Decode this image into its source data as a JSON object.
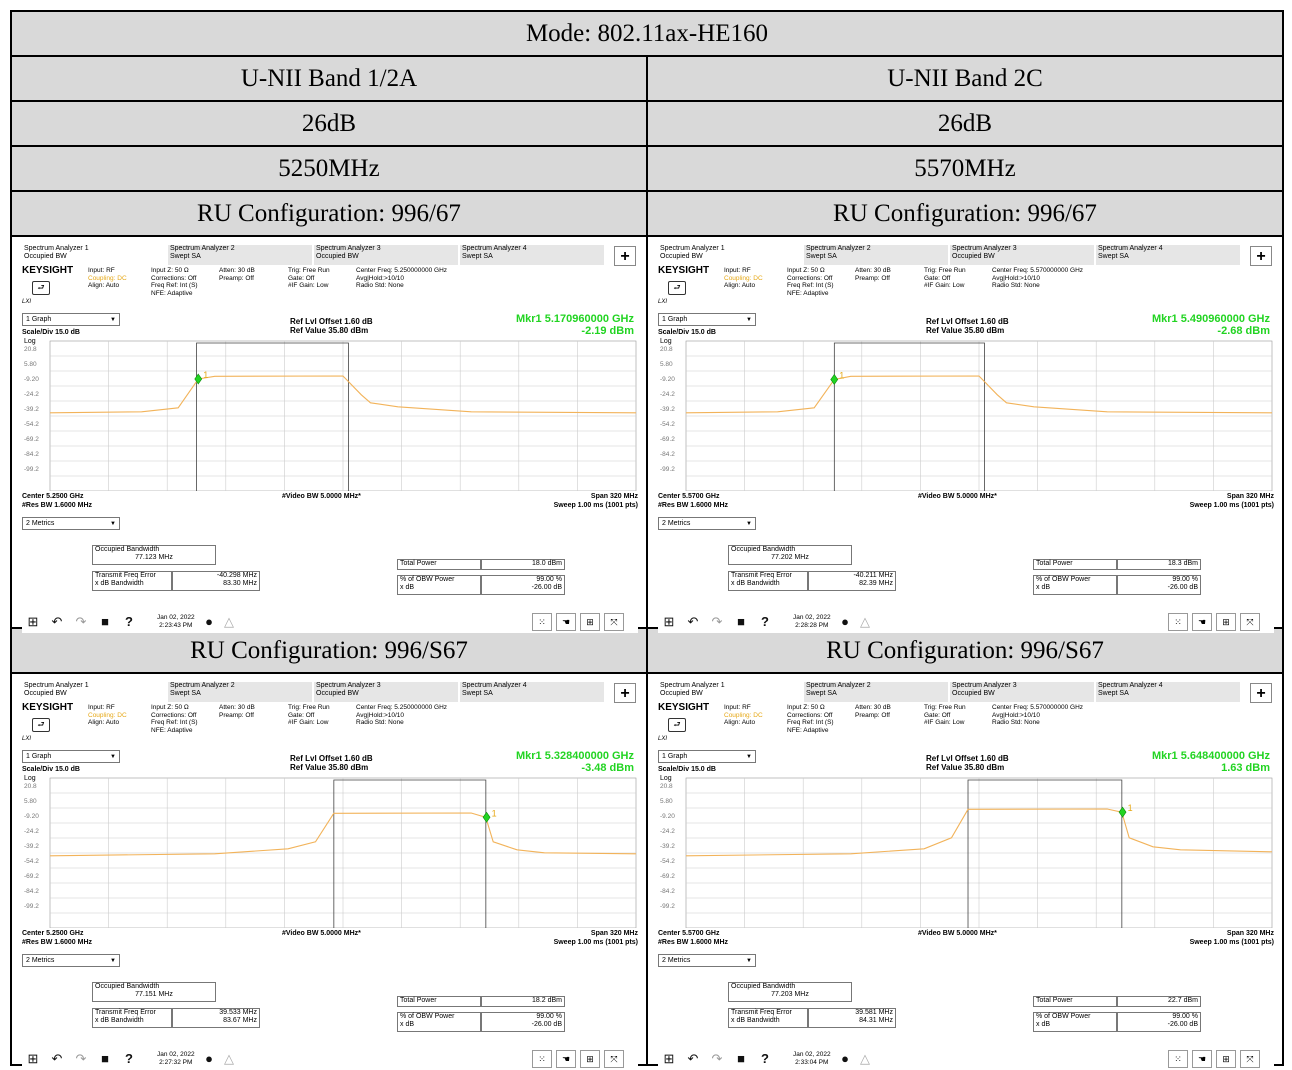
{
  "mode": "Mode: 802.11ax-HE160",
  "bands": [
    {
      "name": "U-NII Band 1/2A",
      "db": "26dB",
      "freq": "5250MHz"
    },
    {
      "name": "U-NII Band 2C",
      "db": "26dB",
      "freq": "5570MHz"
    }
  ],
  "ru_rows": [
    "RU Configuration: 996/67",
    "RU Configuration: 996/S67"
  ],
  "colors": {
    "header_bg": "#d9d9d9",
    "trace": "#f2b35a",
    "marker": "#22d422",
    "accent": "#e6a817"
  },
  "shared": {
    "tabs": [
      {
        "line1": "Spectrum Analyzer 1",
        "line2": "Occupied BW"
      },
      {
        "line1": "Spectrum Analyzer 2",
        "line2": "Swept SA"
      },
      {
        "line1": "Spectrum Analyzer 3",
        "line2": "Occupied BW"
      },
      {
        "line1": "Spectrum Analyzer 4",
        "line2": "Swept SA"
      }
    ],
    "brand": "KEYSIGHT",
    "input": "Input: RF",
    "coupling": "Coupling: DC",
    "align": "Align: Auto",
    "inputz": "Input Z: 50 Ω",
    "corrections": "Corrections: Off",
    "freqref": "Freq Ref: Int (S)",
    "nfe": "NFE: Adaptive",
    "atten": "Atten: 30 dB",
    "preamp": "Preamp: Off",
    "trig": "Trig: Free Run",
    "gate": "Gate: Off",
    "ifgain": "#IF Gain: Low",
    "avghold": "Avg|Hold:>10/10",
    "radiostd": "Radio Std: None",
    "lxi": "LXI",
    "graph_dd": "1 Graph",
    "ref_offset": "Ref Lvl Offset 1.60 dB",
    "ref_value": "Ref Value 35.80 dBm",
    "scale": "Scale/Div 15.0 dB",
    "log": "Log",
    "yticks": [
      "20.8",
      "5.80",
      "-9.20",
      "-24.2",
      "-39.2",
      "-54.2",
      "-69.2",
      "-84.2",
      "-99.2"
    ],
    "video_bw": "#Video BW 5.0000 MHz*",
    "span": "Span 320 MHz",
    "res_bw": "#Res BW 1.6000 MHz",
    "sweep": "Sweep 1.00 ms (1001 pts)",
    "metrics_dd": "2 Metrics",
    "m_occ_label": "Occupied Bandwidth",
    "m_tfe_label": "Transmit Freq Error",
    "m_xdb_label": "x dB Bandwidth",
    "m_tp_label": "Total Power",
    "m_obw_label": "% of OBW Power",
    "m_xdb2_label": "x dB",
    "m_obw_value": "99.00 %",
    "m_xdb2_value": "-26.00 dB",
    "date": "Jan 02, 2022"
  },
  "panels": [
    {
      "center_freq": "Center Freq: 5.250000000 GHz",
      "marker_freq": "Mkr1  5.170960000 GHz",
      "marker_amp": "-2.19 dBm",
      "marker_label": "1",
      "center": "Center 5.2500 GHz",
      "occ_bw": "77.123 MHz",
      "tfe": "-40.298 MHz",
      "xdb_bw": "83.30 MHz",
      "total_power": "18.0 dBm",
      "time": "2:23:43 PM",
      "chart_data": {
        "type": "line",
        "x_range_mhz": [
          5090,
          5410
        ],
        "ylim": [
          -114.2,
          35.8
        ],
        "x": [
          5090,
          5140,
          5160,
          5171,
          5180,
          5250,
          5260,
          5265,
          5280,
          5320,
          5410
        ],
        "y": [
          -36,
          -35,
          -31,
          -2.2,
          0.5,
          0.8,
          -18,
          -26,
          -30,
          -35,
          -36
        ],
        "marker": {
          "x": 5170.96,
          "y": -2.19
        },
        "bracket_mhz": [
          5170,
          5253
        ]
      }
    },
    {
      "center_freq": "Center Freq: 5.570000000 GHz",
      "marker_freq": "Mkr1  5.490960000 GHz",
      "marker_amp": "-2.68 dBm",
      "marker_label": "1",
      "center": "Center 5.5700 GHz",
      "occ_bw": "77.202 MHz",
      "tfe": "-40.211 MHz",
      "xdb_bw": "82.39 MHz",
      "total_power": "18.3 dBm",
      "time": "2:28:28 PM",
      "chart_data": {
        "type": "line",
        "x_range_mhz": [
          5410,
          5730
        ],
        "ylim": [
          -114.2,
          35.8
        ],
        "x": [
          5410,
          5460,
          5480,
          5491,
          5500,
          5570,
          5580,
          5585,
          5600,
          5640,
          5730
        ],
        "y": [
          -36,
          -35,
          -31,
          -2.7,
          0.5,
          0.8,
          -18,
          -26,
          -30,
          -35,
          -36
        ],
        "marker": {
          "x": 5490.96,
          "y": -2.68
        },
        "bracket_mhz": [
          5491,
          5573
        ]
      }
    },
    {
      "center_freq": "Center Freq: 5.250000000 GHz",
      "marker_freq": "Mkr1  5.328400000 GHz",
      "marker_amp": "-3.48 dBm",
      "marker_label": "1",
      "center": "Center 5.2500 GHz",
      "occ_bw": "77.151 MHz",
      "tfe": "39.533 MHz",
      "xdb_bw": "83.67 MHz",
      "total_power": "18.2 dBm",
      "time": "2:27:32 PM",
      "chart_data": {
        "type": "line",
        "x_range_mhz": [
          5090,
          5410
        ],
        "ylim": [
          -114.2,
          35.8
        ],
        "x": [
          5090,
          5180,
          5220,
          5235,
          5245,
          5320,
          5328,
          5332,
          5345,
          5360,
          5410
        ],
        "y": [
          -42,
          -40,
          -35,
          -28,
          0.5,
          0.8,
          -3.5,
          -28,
          -36,
          -39,
          -40
        ],
        "marker": {
          "x": 5328.4,
          "y": -3.48
        },
        "bracket_mhz": [
          5245,
          5328
        ]
      }
    },
    {
      "center_freq": "Center Freq: 5.570000000 GHz",
      "marker_freq": "Mkr1  5.648400000 GHz",
      "marker_amp": "1.63 dBm",
      "marker_label": "1",
      "center": "Center 5.5700 GHz",
      "occ_bw": "77.203 MHz",
      "tfe": "39.581 MHz",
      "xdb_bw": "84.31 MHz",
      "total_power": "22.7 dBm",
      "time": "2:33:04 PM",
      "chart_data": {
        "type": "line",
        "x_range_mhz": [
          5410,
          5730
        ],
        "ylim": [
          -114.2,
          35.8
        ],
        "x": [
          5410,
          5500,
          5540,
          5555,
          5564,
          5640,
          5648,
          5652,
          5665,
          5680,
          5730
        ],
        "y": [
          -42,
          -40,
          -35,
          -24,
          4.5,
          4.8,
          1.6,
          -24,
          -33,
          -36,
          -38
        ],
        "marker": {
          "x": 5648.4,
          "y": 1.63
        },
        "bracket_mhz": [
          5564,
          5648
        ]
      }
    }
  ]
}
